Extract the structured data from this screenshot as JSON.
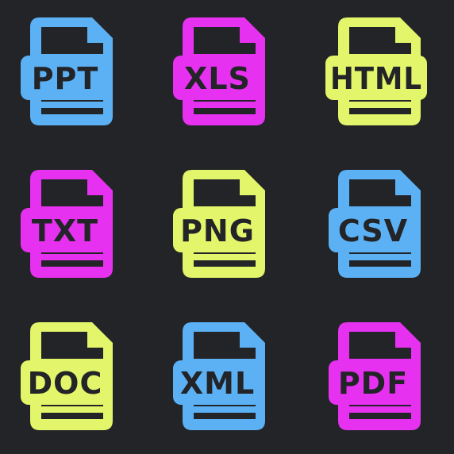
{
  "background_color": "#232427",
  "icons": [
    {
      "label": "PPT",
      "color": "#5cb1f5",
      "icon": "file-ppt-icon"
    },
    {
      "label": "XLS",
      "color": "#e632f0",
      "icon": "file-xls-icon"
    },
    {
      "label": "HTML",
      "color": "#e3f56a",
      "icon": "file-html-icon"
    },
    {
      "label": "TXT",
      "color": "#e632f0",
      "icon": "file-txt-icon"
    },
    {
      "label": "PNG",
      "color": "#e3f56a",
      "icon": "file-png-icon"
    },
    {
      "label": "CSV",
      "color": "#5cb1f5",
      "icon": "file-csv-icon"
    },
    {
      "label": "DOC",
      "color": "#e3f56a",
      "icon": "file-doc-icon"
    },
    {
      "label": "XML",
      "color": "#5cb1f5",
      "icon": "file-xml-icon"
    },
    {
      "label": "PDF",
      "color": "#e632f0",
      "icon": "file-pdf-icon"
    }
  ]
}
